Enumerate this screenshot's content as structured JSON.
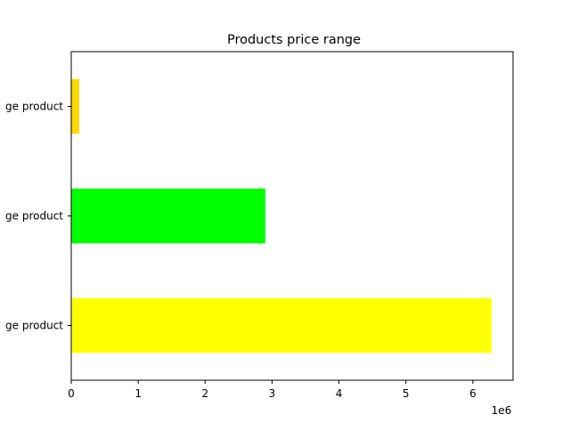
{
  "chart_data": {
    "type": "bar",
    "orientation": "horizontal",
    "title": "Products price range",
    "categories": [
      "High range product",
      "Medium range product",
      "Low range product"
    ],
    "category_labels_visible": [
      "ge product",
      "ge product",
      "ge product"
    ],
    "values": [
      6280000,
      2900000,
      120000
    ],
    "bar_colors": [
      "#ffff00",
      "#00ff00",
      "#ffd700"
    ],
    "xlim": [
      0,
      6600000
    ],
    "xticks": [
      0,
      1000000,
      2000000,
      3000000,
      4000000,
      5000000,
      6000000
    ],
    "xtick_labels": [
      "0",
      "1",
      "2",
      "3",
      "4",
      "5",
      "6"
    ],
    "x_offset_label": "1e6",
    "xlabel": "",
    "ylabel": "",
    "grid": false,
    "legend": "none"
  }
}
